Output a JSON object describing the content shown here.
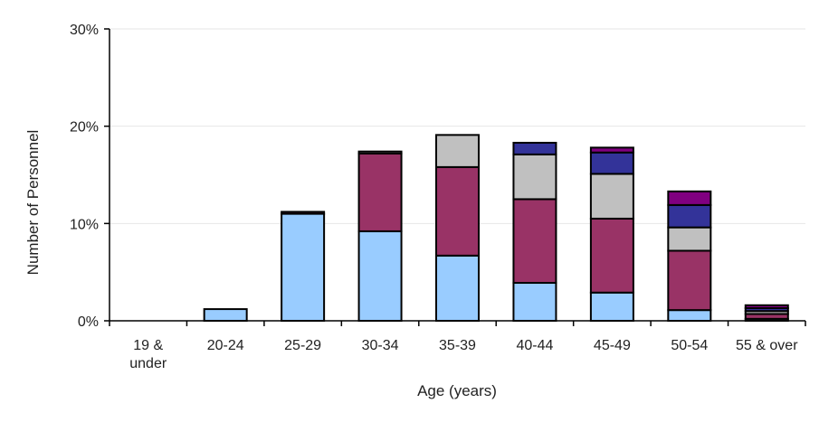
{
  "chart_data": {
    "type": "bar",
    "stacked": true,
    "xlabel": "Age (years)",
    "ylabel": "Number of Personnel",
    "ylim": [
      0,
      30
    ],
    "y_ticks": [
      "0%",
      "10%",
      "20%",
      "30%"
    ],
    "y_tick_values": [
      0,
      10,
      20,
      30
    ],
    "grid": true,
    "legend": "none",
    "categories": [
      "19 & under",
      "20-24",
      "25-29",
      "30-34",
      "35-39",
      "40-44",
      "45-49",
      "50-54",
      "55 & over"
    ],
    "series": [
      {
        "color": "#99ccff",
        "values": [
          0,
          1.2,
          11.0,
          9.2,
          6.7,
          3.9,
          2.9,
          1.1,
          0.2
        ]
      },
      {
        "color": "#993366",
        "values": [
          0,
          0,
          0.2,
          8.0,
          9.1,
          8.6,
          7.6,
          6.1,
          0.5
        ]
      },
      {
        "color": "#c0c0c0",
        "values": [
          0,
          0,
          0,
          0.2,
          3.3,
          4.6,
          4.6,
          2.4,
          0.3
        ]
      },
      {
        "color": "#333399",
        "values": [
          0,
          0,
          0,
          0,
          0,
          1.2,
          2.2,
          2.3,
          0.3
        ]
      },
      {
        "color": "#800080",
        "values": [
          0,
          0,
          0,
          0,
          0,
          0,
          0.5,
          1.4,
          0.3
        ]
      }
    ]
  }
}
